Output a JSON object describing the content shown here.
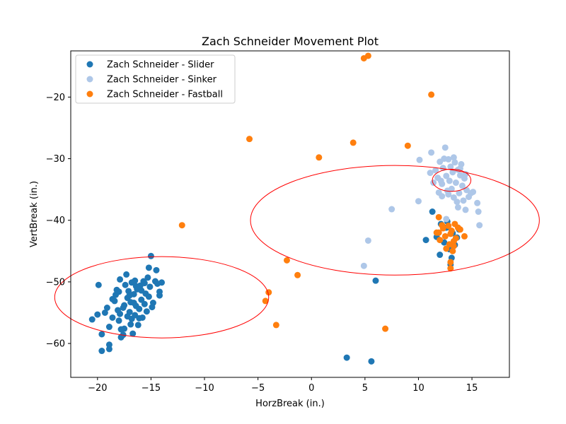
{
  "chart_data": {
    "type": "scatter",
    "title": "Zach Schneider Movement Plot",
    "xlabel": "HorzBreak (in.)",
    "ylabel": "VertBreak (in.)",
    "xlim": [
      -22.5,
      18.5
    ],
    "ylim": [
      -65.5,
      -12.5
    ],
    "xticks": [
      -20,
      -15,
      -10,
      -5,
      0,
      5,
      10,
      15
    ],
    "yticks": [
      -60,
      -50,
      -40,
      -30,
      -20
    ],
    "grid": false,
    "legend_placement": "top-left",
    "series": [
      {
        "name": "Zach Schneider - Slider",
        "color": "#1f77b4",
        "points": [
          [
            -20.5,
            -56.1
          ],
          [
            -20.0,
            -55.3
          ],
          [
            -19.9,
            -50.5
          ],
          [
            -19.6,
            -58.5
          ],
          [
            -19.6,
            -61.2
          ],
          [
            -19.3,
            -55.0
          ],
          [
            -19.1,
            -54.2
          ],
          [
            -18.9,
            -57.3
          ],
          [
            -18.9,
            -60.2
          ],
          [
            -18.9,
            -60.9
          ],
          [
            -18.6,
            -55.8
          ],
          [
            -18.4,
            -53.1
          ],
          [
            -18.3,
            -52.1
          ],
          [
            -18.2,
            -51.3
          ],
          [
            -18.1,
            -54.6
          ],
          [
            -18.0,
            -56.3
          ],
          [
            -17.9,
            -55.2
          ],
          [
            -17.9,
            -49.6
          ],
          [
            -17.8,
            -59.0
          ],
          [
            -17.6,
            -58.6
          ],
          [
            -17.5,
            -53.8
          ],
          [
            -17.5,
            -57.6
          ],
          [
            -17.4,
            -50.5
          ],
          [
            -17.3,
            -48.8
          ],
          [
            -17.2,
            -52.6
          ],
          [
            -17.1,
            -51.5
          ],
          [
            -17.0,
            -54.9
          ],
          [
            -16.9,
            -53.3
          ],
          [
            -16.8,
            -50.1
          ],
          [
            -16.8,
            -56.0
          ],
          [
            -16.7,
            -58.4
          ],
          [
            -16.6,
            -52.0
          ],
          [
            -16.5,
            -55.4
          ],
          [
            -16.5,
            -49.8
          ],
          [
            -16.4,
            -53.9
          ],
          [
            -16.3,
            -51.2
          ],
          [
            -16.2,
            -57.0
          ],
          [
            -16.1,
            -54.4
          ],
          [
            -16.0,
            -50.6
          ],
          [
            -15.9,
            -52.9
          ],
          [
            -15.8,
            -55.8
          ],
          [
            -15.7,
            -49.9
          ],
          [
            -15.6,
            -53.6
          ],
          [
            -15.5,
            -51.9
          ],
          [
            -15.4,
            -54.8
          ],
          [
            -15.3,
            -49.3
          ],
          [
            -15.2,
            -52.4
          ],
          [
            -15.1,
            -50.8
          ],
          [
            -15.0,
            -45.8
          ],
          [
            -14.9,
            -54.1
          ],
          [
            -14.8,
            -53.4
          ],
          [
            -14.6,
            -49.9
          ],
          [
            -14.5,
            -48.1
          ],
          [
            -14.4,
            -50.3
          ],
          [
            -14.2,
            -52.2
          ],
          [
            -14.2,
            -51.6
          ],
          [
            -14.0,
            -50.1
          ],
          [
            -15.2,
            -47.7
          ],
          [
            -17.8,
            -57.7
          ],
          [
            -16.9,
            -56.9
          ],
          [
            -18.6,
            -52.8
          ],
          [
            -17.0,
            -52.2
          ],
          [
            -16.1,
            -55.9
          ],
          [
            -15.6,
            -50.2
          ],
          [
            -17.6,
            -54.2
          ],
          [
            -18.0,
            -51.6
          ],
          [
            -16.4,
            -50.7
          ],
          [
            -15.9,
            -51.4
          ],
          [
            -17.2,
            -55.6
          ],
          [
            -16.6,
            -53.4
          ],
          [
            11.3,
            -38.6
          ],
          [
            11.7,
            -42.7
          ],
          [
            12.0,
            -45.6
          ],
          [
            12.1,
            -40.6
          ],
          [
            12.4,
            -43.6
          ],
          [
            12.6,
            -41.2
          ],
          [
            12.9,
            -44.7
          ],
          [
            13.1,
            -46.1
          ],
          [
            13.2,
            -42.1
          ],
          [
            13.4,
            -44.0
          ],
          [
            13.6,
            -42.8
          ],
          [
            13.8,
            -41.5
          ],
          [
            13.0,
            -47.2
          ],
          [
            10.7,
            -43.2
          ],
          [
            12.7,
            -40.2
          ],
          [
            6.0,
            -49.8
          ],
          [
            3.3,
            -62.3
          ],
          [
            5.6,
            -62.9
          ]
        ]
      },
      {
        "name": "Zach Schneider - Sinker",
        "color": "#aec7e8",
        "points": [
          [
            10.1,
            -30.2
          ],
          [
            11.2,
            -29.0
          ],
          [
            11.6,
            -31.9
          ],
          [
            11.8,
            -33.1
          ],
          [
            12.0,
            -30.5
          ],
          [
            12.2,
            -34.1
          ],
          [
            12.3,
            -31.5
          ],
          [
            12.5,
            -28.2
          ],
          [
            12.6,
            -32.8
          ],
          [
            12.7,
            -35.2
          ],
          [
            12.8,
            -30.1
          ],
          [
            12.9,
            -33.6
          ],
          [
            13.0,
            -31.3
          ],
          [
            13.1,
            -34.9
          ],
          [
            13.2,
            -32.2
          ],
          [
            13.3,
            -36.3
          ],
          [
            13.4,
            -30.6
          ],
          [
            13.5,
            -33.9
          ],
          [
            13.6,
            -37.0
          ],
          [
            13.7,
            -31.8
          ],
          [
            13.8,
            -35.6
          ],
          [
            13.9,
            -32.7
          ],
          [
            14.0,
            -30.9
          ],
          [
            14.1,
            -34.4
          ],
          [
            14.2,
            -36.8
          ],
          [
            14.3,
            -33.2
          ],
          [
            14.5,
            -35.1
          ],
          [
            14.7,
            -36.2
          ],
          [
            14.9,
            -35.6
          ],
          [
            15.1,
            -35.4
          ],
          [
            15.5,
            -37.2
          ],
          [
            15.6,
            -38.6
          ],
          [
            15.7,
            -40.8
          ],
          [
            14.4,
            -38.3
          ],
          [
            13.7,
            -37.9
          ],
          [
            12.6,
            -39.8
          ],
          [
            12.2,
            -36.1
          ],
          [
            11.9,
            -35.5
          ],
          [
            11.4,
            -33.9
          ],
          [
            11.1,
            -32.3
          ],
          [
            10.0,
            -36.9
          ],
          [
            7.5,
            -38.2
          ],
          [
            5.3,
            -43.3
          ],
          [
            4.9,
            -47.4
          ],
          [
            12.4,
            -30.0
          ],
          [
            13.3,
            -29.8
          ],
          [
            12.8,
            -35.8
          ],
          [
            13.9,
            -31.6
          ],
          [
            14.4,
            -32.5
          ],
          [
            12.1,
            -33.6
          ]
        ]
      },
      {
        "name": "Zach Schneider - Fastball",
        "color": "#ff7f0e",
        "points": [
          [
            4.9,
            -13.7
          ],
          [
            5.3,
            -13.3
          ],
          [
            11.2,
            -19.6
          ],
          [
            -5.8,
            -26.8
          ],
          [
            3.9,
            -27.4
          ],
          [
            9.0,
            -27.9
          ],
          [
            0.7,
            -29.8
          ],
          [
            -12.1,
            -40.8
          ],
          [
            -2.3,
            -46.5
          ],
          [
            -1.3,
            -48.9
          ],
          [
            -4.0,
            -51.7
          ],
          [
            -4.3,
            -53.1
          ],
          [
            -3.3,
            -57.0
          ],
          [
            6.9,
            -57.6
          ],
          [
            11.9,
            -39.5
          ],
          [
            11.7,
            -42.0
          ],
          [
            12.0,
            -43.2
          ],
          [
            12.3,
            -41.3
          ],
          [
            12.5,
            -42.6
          ],
          [
            12.6,
            -44.6
          ],
          [
            12.8,
            -40.9
          ],
          [
            12.9,
            -43.9
          ],
          [
            13.0,
            -42.2
          ],
          [
            13.1,
            -41.7
          ],
          [
            13.2,
            -45.0
          ],
          [
            13.3,
            -43.4
          ],
          [
            13.4,
            -40.6
          ],
          [
            13.5,
            -42.9
          ],
          [
            13.7,
            -41.2
          ],
          [
            13.9,
            -41.5
          ],
          [
            14.3,
            -42.6
          ],
          [
            13.0,
            -47.8
          ],
          [
            13.0,
            -46.8
          ],
          [
            13.3,
            -44.2
          ],
          [
            12.2,
            -40.8
          ],
          [
            11.9,
            -42.0
          ]
        ]
      }
    ],
    "ellipses": [
      {
        "center": [
          -14.0,
          -52.5
        ],
        "width": 20.0,
        "height": 13.2,
        "color": "#ff0000"
      },
      {
        "center": [
          7.8,
          -40.0
        ],
        "width": 27.0,
        "height": 17.8,
        "color": "#ff0000"
      },
      {
        "center": [
          13.1,
          -33.5
        ],
        "width": 3.6,
        "height": 3.6,
        "color": "#ff0000"
      }
    ]
  }
}
